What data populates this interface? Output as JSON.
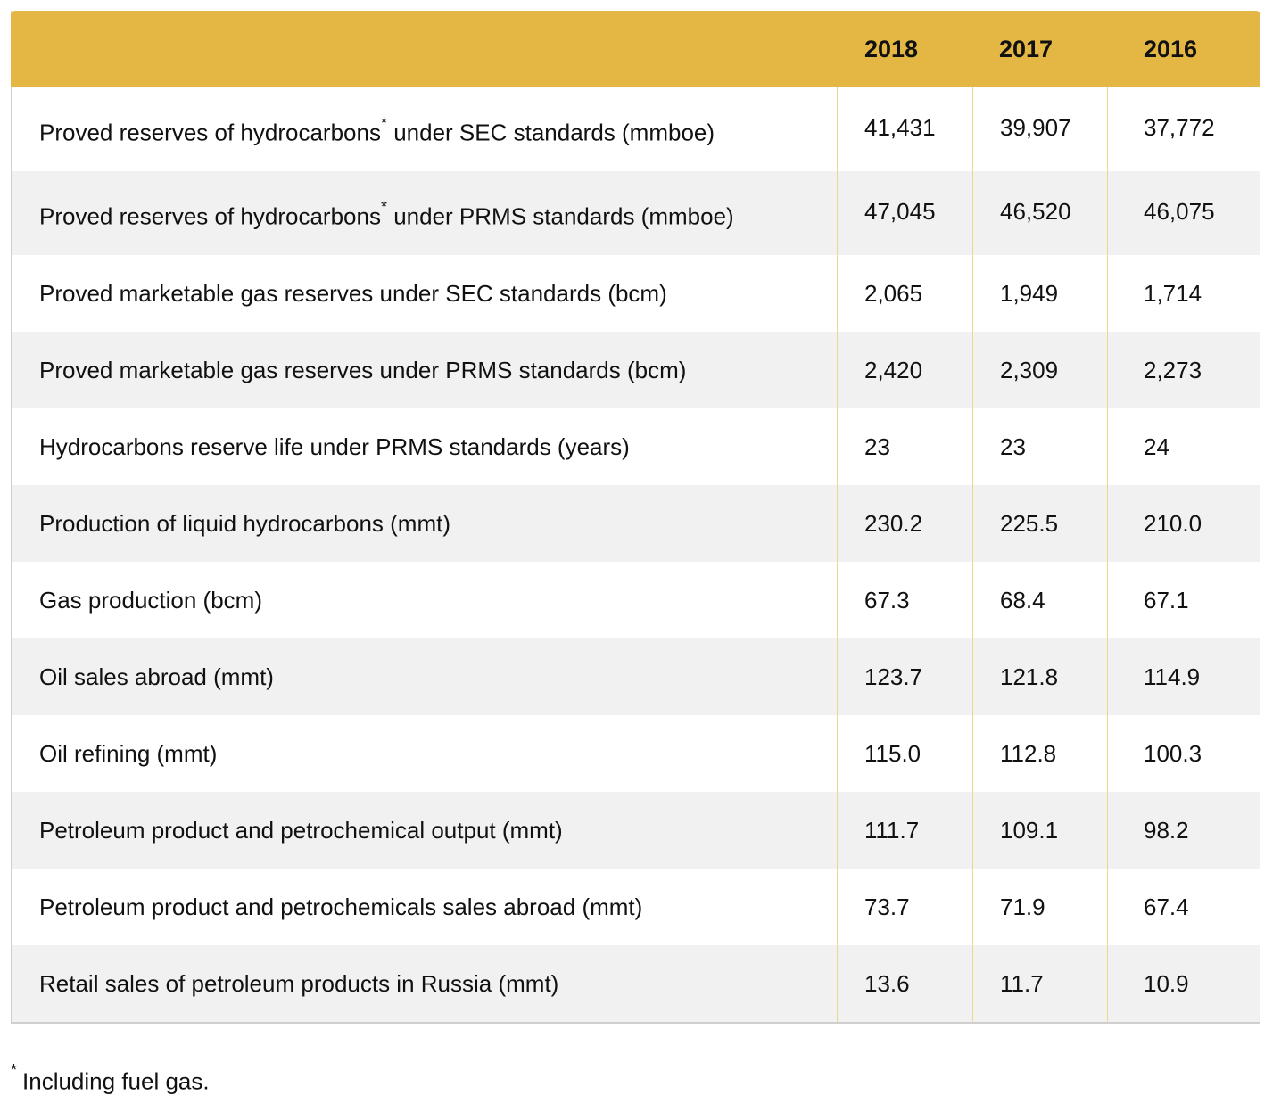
{
  "table": {
    "years": [
      "2018",
      "2017",
      "2016"
    ],
    "rows": [
      {
        "label": "Proved reserves of hydrocarbons",
        "mark": "*",
        "suffix": " under SEC standards (mmboe)",
        "values": [
          "41,431",
          "39,907",
          "37,772"
        ]
      },
      {
        "label": "Proved reserves of hydrocarbons",
        "mark": "*",
        "suffix": " under PRMS standards (mmboe)",
        "values": [
          "47,045",
          "46,520",
          "46,075"
        ]
      },
      {
        "label": "Proved marketable gas reserves under SEC standards (bcm)",
        "mark": "",
        "suffix": "",
        "values": [
          "2,065",
          "1,949",
          "1,714"
        ]
      },
      {
        "label": "Proved marketable gas reserves under PRMS standards (bcm)",
        "mark": "",
        "suffix": "",
        "values": [
          "2,420",
          "2,309",
          "2,273"
        ]
      },
      {
        "label": "Hydrocarbons reserve life under PRMS standards (years)",
        "mark": "",
        "suffix": "",
        "values": [
          "23",
          "23",
          "24"
        ]
      },
      {
        "label": "Production of liquid hydrocarbons (mmt)",
        "mark": "",
        "suffix": "",
        "values": [
          "230.2",
          "225.5",
          "210.0"
        ]
      },
      {
        "label": "Gas production (bcm)",
        "mark": "",
        "suffix": "",
        "values": [
          "67.3",
          "68.4",
          "67.1"
        ]
      },
      {
        "label": "Oil sales abroad (mmt)",
        "mark": "",
        "suffix": "",
        "values": [
          "123.7",
          "121.8",
          "114.9"
        ]
      },
      {
        "label": "Oil refining (mmt)",
        "mark": "",
        "suffix": "",
        "values": [
          "115.0",
          "112.8",
          "100.3"
        ]
      },
      {
        "label": "Petroleum product and petrochemical output (mmt)",
        "mark": "",
        "suffix": "",
        "values": [
          "111.7",
          "109.1",
          "98.2"
        ]
      },
      {
        "label": "Petroleum product and petrochemicals sales abroad (mmt)",
        "mark": "",
        "suffix": "",
        "values": [
          "73.7",
          "71.9",
          "67.4"
        ]
      },
      {
        "label": "Retail sales of petroleum products in Russia (mmt)",
        "mark": "",
        "suffix": "",
        "values": [
          "13.6",
          "11.7",
          "10.9"
        ]
      }
    ]
  },
  "footnote": {
    "mark": "*",
    "text": "Including fuel gas."
  },
  "colors": {
    "header": "#e4b744",
    "row_alt": "#f1f1f1",
    "divider": "#e8d98c"
  }
}
